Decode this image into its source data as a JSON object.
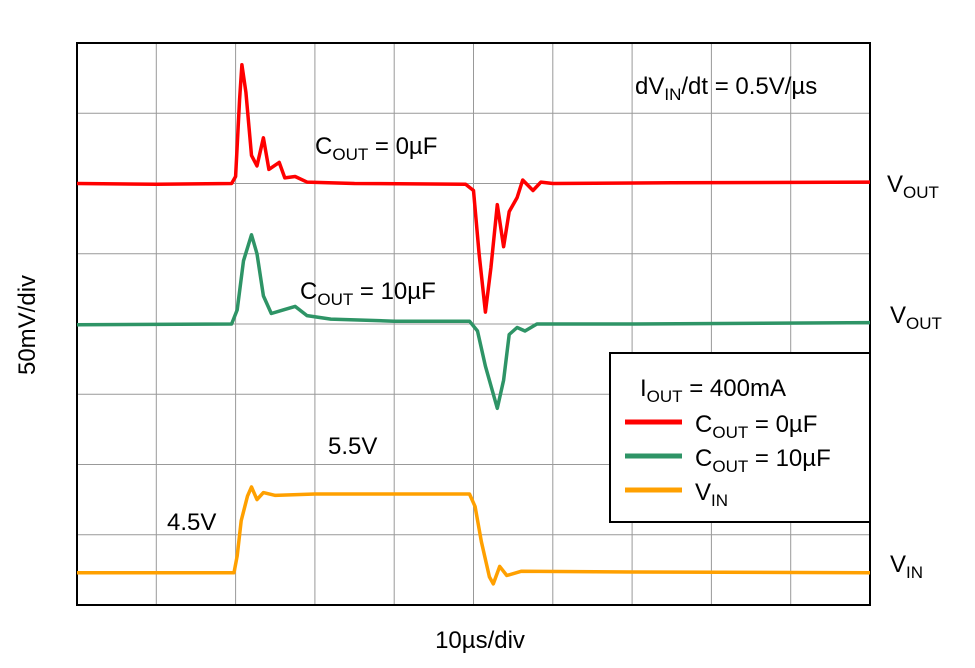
{
  "chart_data": {
    "type": "line",
    "title": [
      "dV",
      "IN",
      "/dt = 0.5V/µs"
    ],
    "x_label": "10µs/div",
    "y_label": "50mV/div",
    "xlim": [
      0,
      10
    ],
    "ylim": [
      0,
      8
    ],
    "xticks": [
      0,
      1,
      2,
      3,
      4,
      5,
      6,
      7,
      8,
      9,
      10
    ],
    "yticks": [
      0,
      1,
      2,
      3,
      4,
      5,
      6,
      7,
      8
    ],
    "grid": true,
    "legend": "right",
    "legend_title": [
      "I",
      "OUT",
      " = 400mA"
    ],
    "annotations": [
      [
        "C",
        "OUT",
        " = 0µF"
      ],
      [
        "C",
        "OUT",
        " = 10µF"
      ],
      [
        "5.5V"
      ],
      [
        "4.5V"
      ],
      [
        "V",
        "OUT"
      ],
      [
        "V",
        "OUT"
      ],
      [
        "V",
        "IN"
      ]
    ],
    "series": [
      {
        "name": [
          "C",
          "OUT",
          " = 0µF"
        ],
        "color": "#ff0000",
        "x": [
          0,
          1.0,
          1.95,
          2.0,
          2.05,
          2.08,
          2.13,
          2.2,
          2.27,
          2.35,
          2.42,
          2.55,
          2.62,
          2.75,
          2.9,
          3.5,
          4.9,
          5.0,
          5.07,
          5.15,
          5.22,
          5.3,
          5.38,
          5.45,
          5.55,
          5.62,
          5.75,
          5.85,
          6.0,
          7.5,
          10
        ],
        "values": [
          6.0,
          5.99,
          6.0,
          6.1,
          7.2,
          7.69,
          7.3,
          6.4,
          6.25,
          6.65,
          6.2,
          6.3,
          6.08,
          6.1,
          6.02,
          6.0,
          5.99,
          5.9,
          5.0,
          4.17,
          4.8,
          5.7,
          5.1,
          5.6,
          5.8,
          6.05,
          5.9,
          6.02,
          6.0,
          6.01,
          6.02
        ]
      },
      {
        "name": [
          "C",
          "OUT",
          " = 10µF"
        ],
        "color": "#2e9466",
        "x": [
          0,
          1.95,
          2.02,
          2.1,
          2.2,
          2.27,
          2.35,
          2.45,
          2.6,
          2.75,
          2.9,
          3.2,
          4.0,
          4.95,
          5.05,
          5.15,
          5.3,
          5.38,
          5.45,
          5.55,
          5.65,
          5.8,
          7,
          10
        ],
        "values": [
          3.99,
          4.0,
          4.2,
          4.9,
          5.27,
          5.0,
          4.4,
          4.15,
          4.2,
          4.25,
          4.12,
          4.07,
          4.04,
          4.04,
          3.9,
          3.4,
          2.8,
          3.2,
          3.85,
          3.95,
          3.9,
          4.0,
          4.0,
          4.02
        ]
      },
      {
        "name": [
          "V",
          "IN"
        ],
        "color": "#ffa000",
        "x": [
          0,
          1.98,
          2.02,
          2.07,
          2.15,
          2.2,
          2.27,
          2.35,
          2.5,
          3,
          4.95,
          5.02,
          5.1,
          5.2,
          5.25,
          5.33,
          5.42,
          5.6,
          7,
          10
        ],
        "values": [
          0.46,
          0.46,
          0.7,
          1.2,
          1.55,
          1.68,
          1.5,
          1.6,
          1.56,
          1.58,
          1.58,
          1.4,
          0.9,
          0.4,
          0.3,
          0.55,
          0.42,
          0.48,
          0.47,
          0.46
        ]
      }
    ]
  }
}
